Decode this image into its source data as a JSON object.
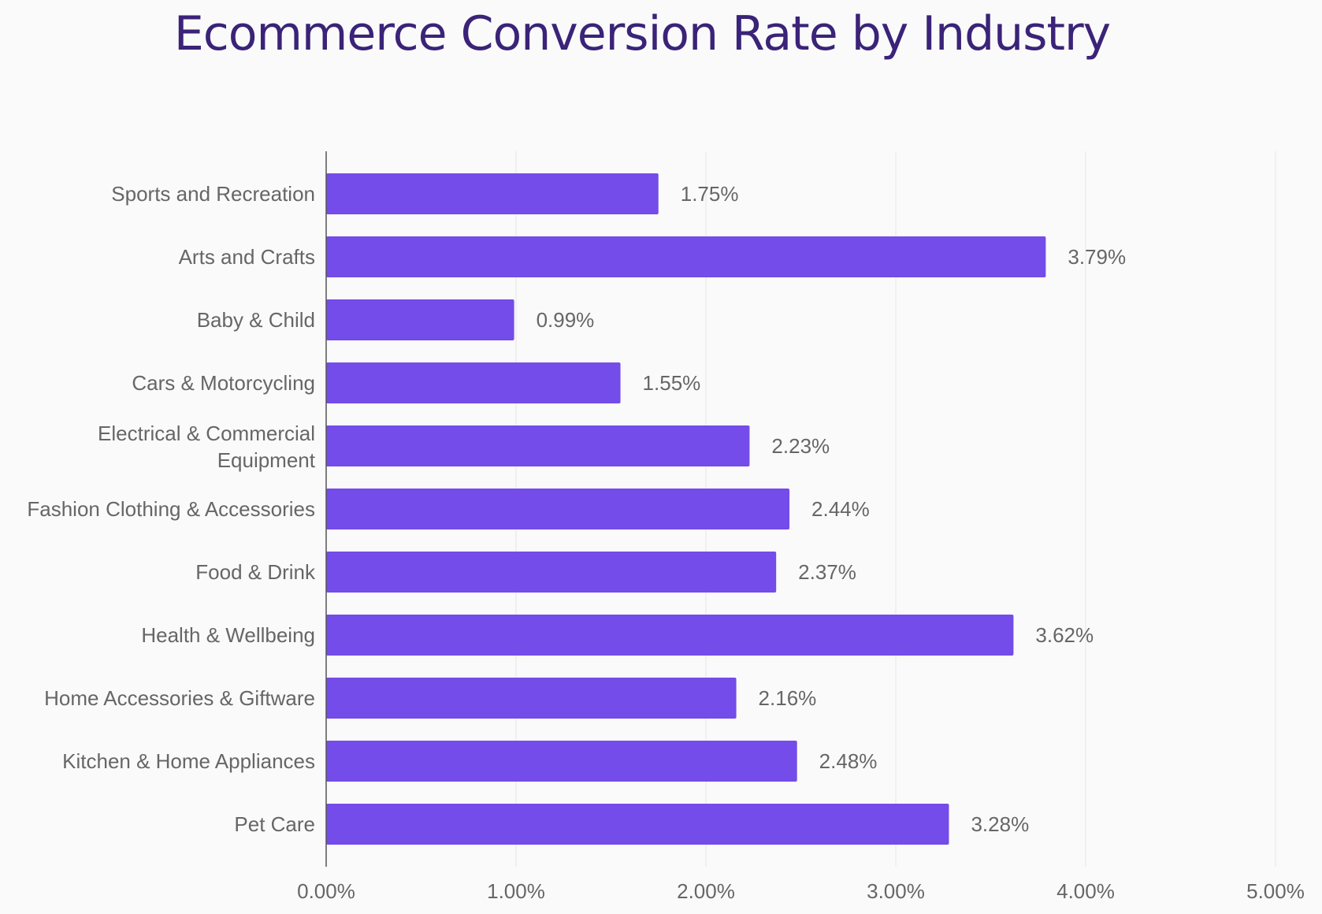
{
  "chart_data": {
    "type": "bar",
    "orientation": "horizontal",
    "title": "Ecommerce Conversion Rate by Industry",
    "xlabel": "",
    "ylabel": "",
    "categories": [
      "Sports and Recreation",
      "Arts and Crafts",
      "Baby & Child",
      "Cars & Motorcycling",
      "Electrical & Commercial Equipment",
      "Fashion Clothing & Accessories",
      "Food & Drink",
      "Health & Wellbeing",
      "Home Accessories & Giftware",
      "Kitchen & Home Appliances",
      "Pet Care"
    ],
    "values": [
      1.75,
      3.79,
      0.99,
      1.55,
      2.23,
      2.44,
      2.37,
      3.62,
      2.16,
      2.48,
      3.28
    ],
    "data_labels": [
      "1.75%",
      "3.79%",
      "0.99%",
      "1.55%",
      "2.23%",
      "2.44%",
      "2.37%",
      "3.62%",
      "2.16%",
      "2.48%",
      "3.28%"
    ],
    "xlim": [
      0,
      5
    ],
    "xticks": [
      0,
      1,
      2,
      3,
      4,
      5
    ],
    "xtick_labels": [
      "0.00%",
      "1.00%",
      "2.00%",
      "3.00%",
      "4.00%",
      "5.00%"
    ],
    "grid": true,
    "legend": "none",
    "colors": {
      "bar": "#744ce9",
      "title": "#3a2378",
      "text": "#666666",
      "grid": "#e6e6e6"
    }
  }
}
